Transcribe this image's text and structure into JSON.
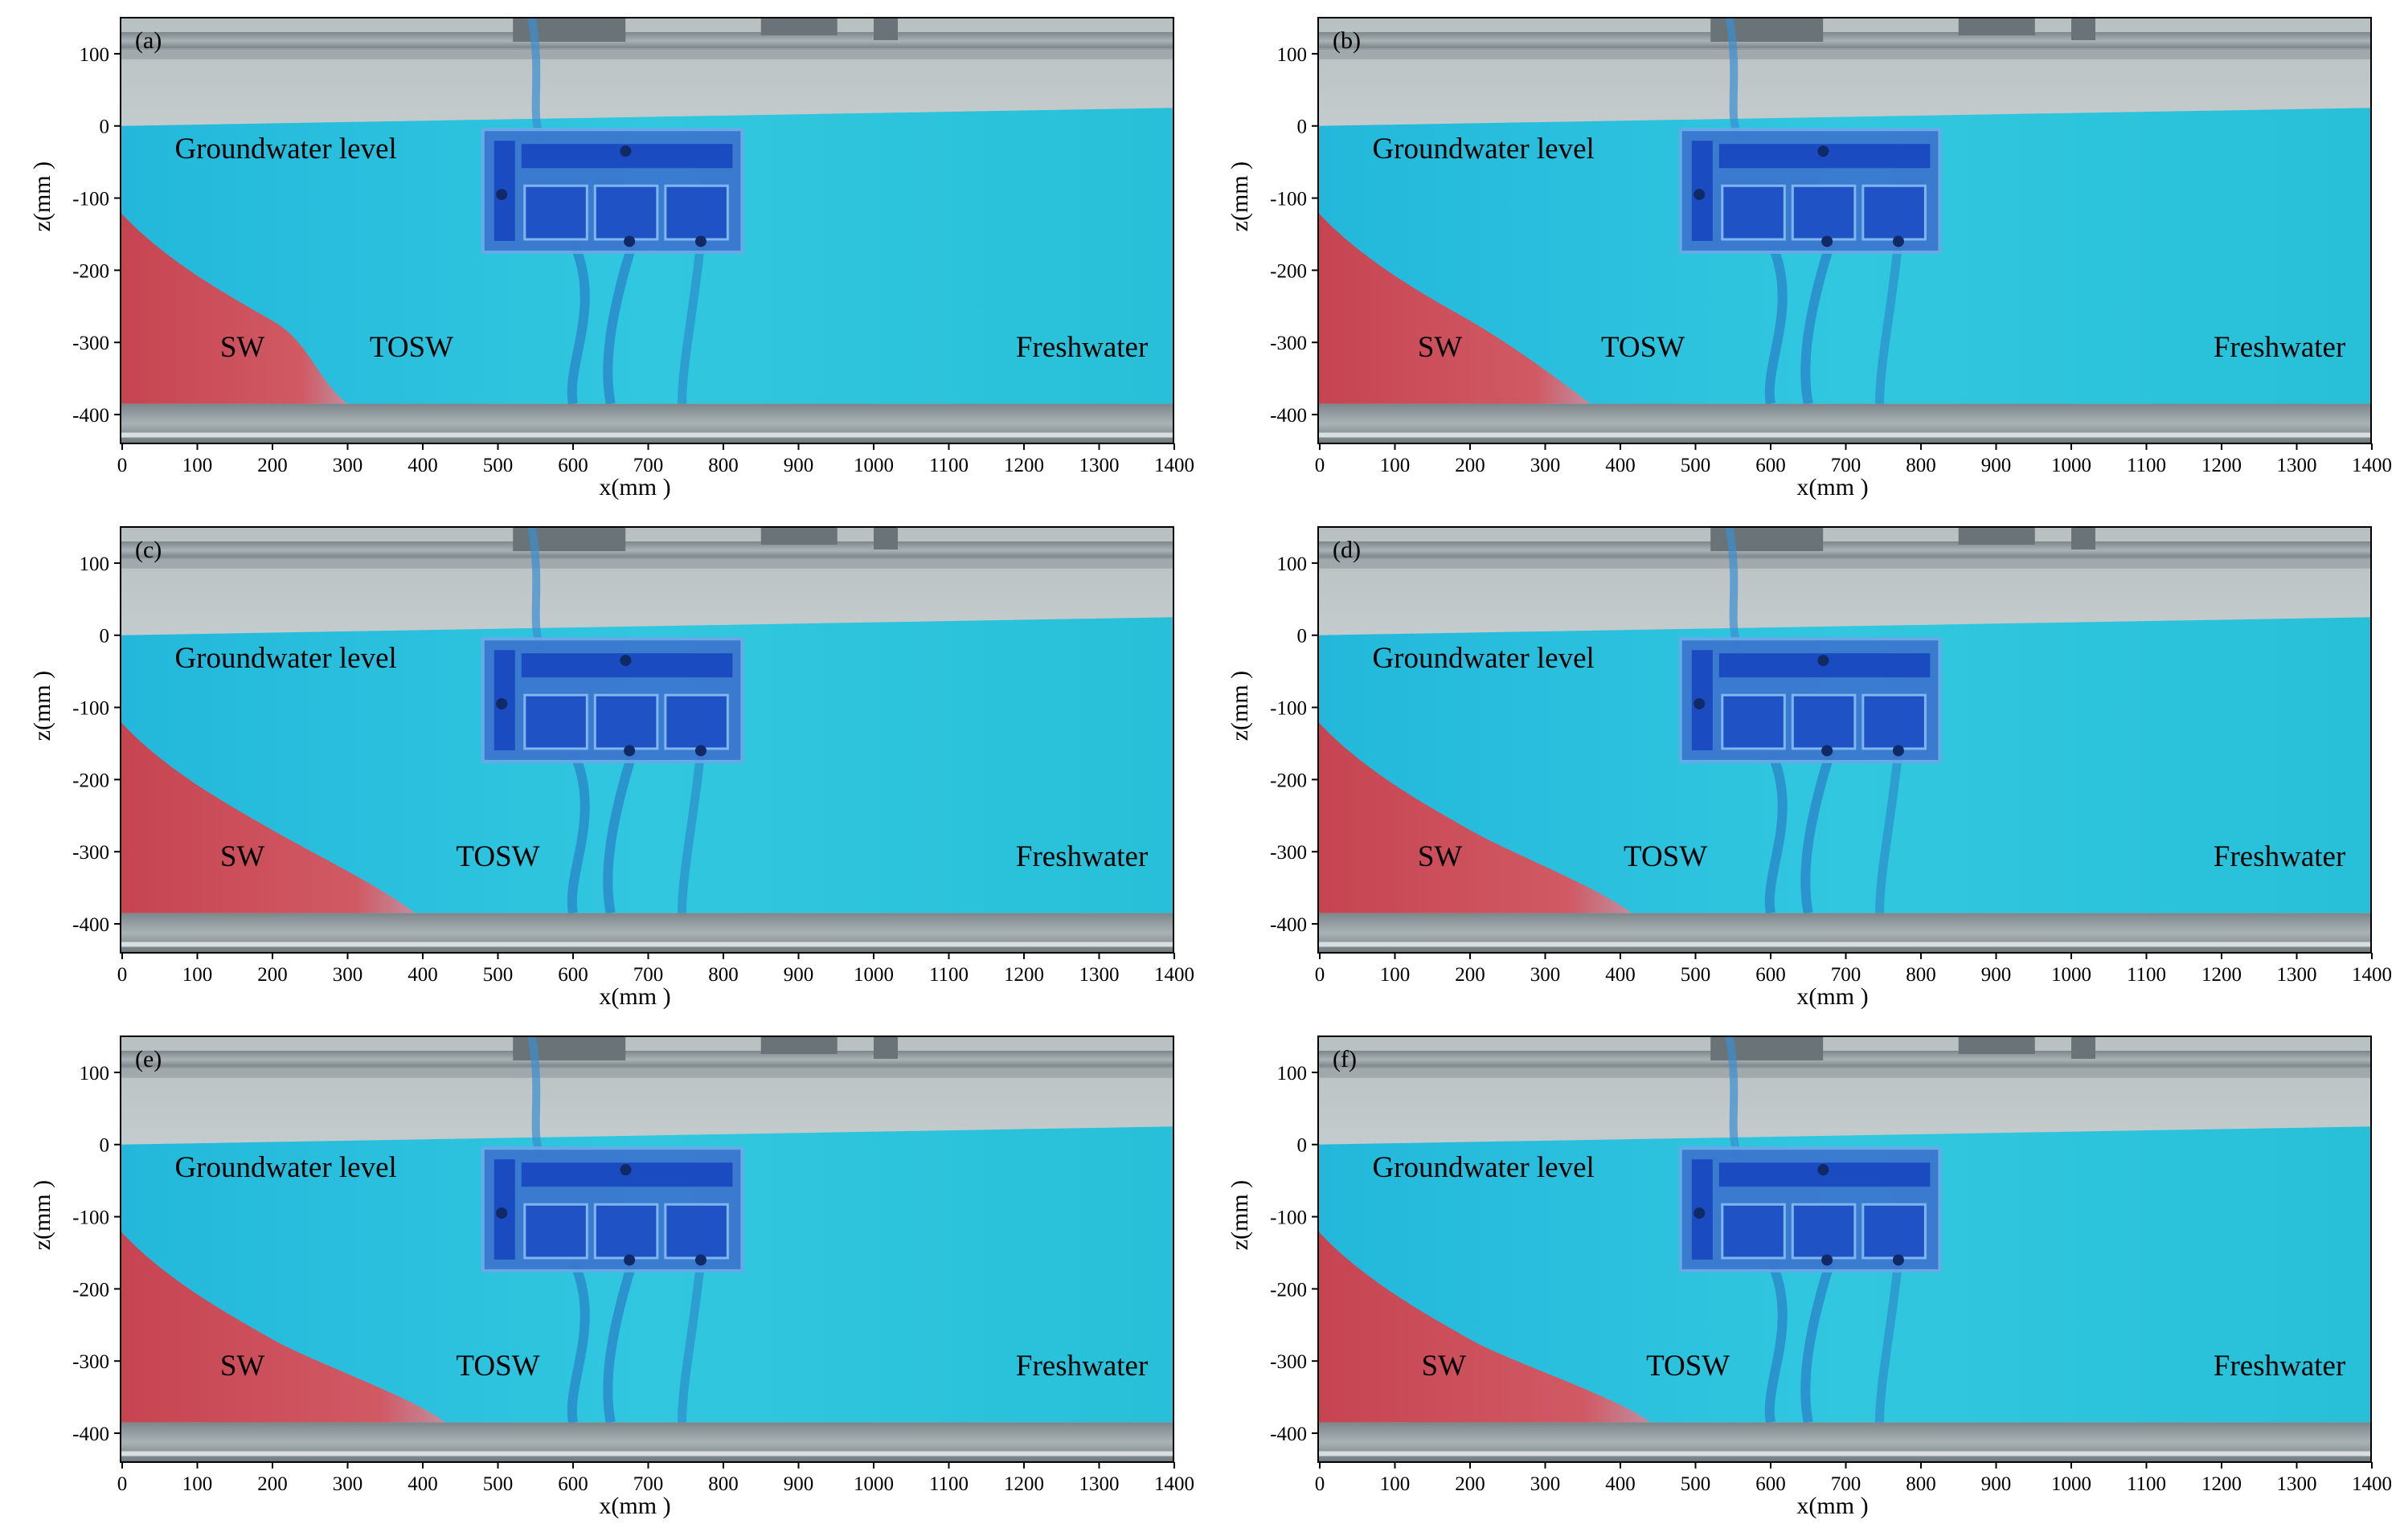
{
  "figure": {
    "x_axis_label": "x(mm )",
    "y_axis_label": "z(mm )",
    "x_ticks": [
      "0",
      "100",
      "200",
      "300",
      "400",
      "500",
      "600",
      "700",
      "800",
      "900",
      "1000",
      "1100",
      "1200",
      "1300",
      "1400"
    ],
    "y_ticks": [
      "100",
      "0",
      "-100",
      "-200",
      "-300",
      "-400"
    ],
    "x_range": [
      0,
      1400
    ],
    "y_range": [
      -440,
      150
    ],
    "colors": {
      "freshwater": "#2ec4de",
      "saltwater": "#d54a55",
      "frame": "#8a9499",
      "device": "#1f56c8"
    }
  },
  "panels": [
    {
      "label": "(a)",
      "water_level": "Groundwater  level",
      "sw": "SW",
      "tosw": "TOSW",
      "fresh": "Freshwater",
      "toe_x_mm": 300,
      "tosw_x_mm": 385,
      "sw_x_mm": 160
    },
    {
      "label": "(b)",
      "water_level": "Groundwater  level",
      "sw": "SW",
      "tosw": "TOSW",
      "fresh": "Freshwater",
      "toe_x_mm": 360,
      "tosw_x_mm": 430,
      "sw_x_mm": 160
    },
    {
      "label": "(c)",
      "water_level": "Groundwater  level",
      "sw": "SW",
      "tosw": "TOSW",
      "fresh": "Freshwater",
      "toe_x_mm": 390,
      "tosw_x_mm": 500,
      "sw_x_mm": 160
    },
    {
      "label": "(d)",
      "water_level": "Groundwater  level",
      "sw": "SW",
      "tosw": "TOSW",
      "fresh": "Freshwater",
      "toe_x_mm": 415,
      "tosw_x_mm": 460,
      "sw_x_mm": 160
    },
    {
      "label": "(e)",
      "water_level": "Groundwater  level",
      "sw": "SW",
      "tosw": "TOSW",
      "fresh": "Freshwater",
      "toe_x_mm": 430,
      "tosw_x_mm": 500,
      "sw_x_mm": 160
    },
    {
      "label": "(f)",
      "water_level": "Groundwater  level",
      "sw": "SW",
      "tosw": "TOSW",
      "fresh": "Freshwater",
      "toe_x_mm": 440,
      "tosw_x_mm": 490,
      "sw_x_mm": 165
    }
  ]
}
